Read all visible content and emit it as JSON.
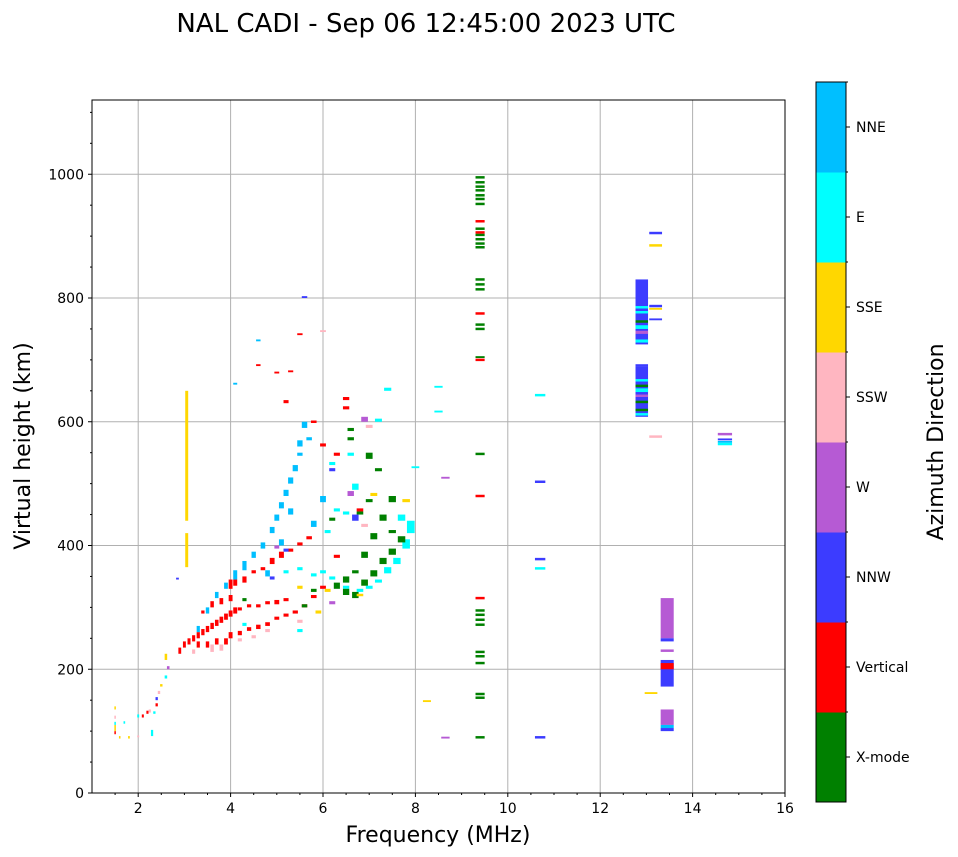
{
  "chart_data": {
    "type": "heatmap",
    "title": "NAL CADI - Sep 06 12:45:00 2023 UTC",
    "xlabel": "Frequency (MHz)",
    "ylabel": "Virtual height (km)",
    "xlim": [
      1,
      16
    ],
    "ylim": [
      0,
      1120
    ],
    "xticks": [
      2,
      4,
      6,
      8,
      10,
      12,
      14,
      16
    ],
    "yticks": [
      0,
      200,
      400,
      600,
      800,
      1000
    ],
    "grid": true,
    "colorbar": {
      "label": "Azimuth Direction",
      "placement": "right",
      "categories": [
        {
          "name": "X-mode",
          "color": "#008000"
        },
        {
          "name": "Vertical",
          "color": "#ff0000"
        },
        {
          "name": "NNW",
          "color": "#3c3cff"
        },
        {
          "name": "W",
          "color": "#b65ad4"
        },
        {
          "name": "SSW",
          "color": "#ffb6c1"
        },
        {
          "name": "SSE",
          "color": "#ffd700"
        },
        {
          "name": "E",
          "color": "#00ffff"
        },
        {
          "name": "NNE",
          "color": "#00bfff"
        }
      ]
    },
    "cell_format": [
      "freq_MHz",
      "height_low_km",
      "height_high_km",
      "category_index"
    ],
    "cells": [
      [
        1.5,
        95,
        100,
        1
      ],
      [
        1.5,
        100,
        110,
        5
      ],
      [
        1.5,
        110,
        115,
        6
      ],
      [
        1.5,
        120,
        125,
        4
      ],
      [
        1.5,
        135,
        140,
        5
      ],
      [
        1.6,
        88,
        92,
        5
      ],
      [
        1.8,
        88,
        92,
        5
      ],
      [
        2.0,
        122,
        127,
        6
      ],
      [
        2.2,
        128,
        133,
        1
      ],
      [
        2.25,
        130,
        135,
        4
      ],
      [
        2.4,
        140,
        145,
        1
      ],
      [
        2.4,
        150,
        155,
        2
      ],
      [
        2.45,
        160,
        165,
        4
      ],
      [
        2.5,
        172,
        176,
        5
      ],
      [
        2.3,
        92,
        102,
        6
      ],
      [
        2.6,
        185,
        190,
        6
      ],
      [
        2.65,
        200,
        205,
        3
      ],
      [
        2.6,
        215,
        225,
        5
      ],
      [
        2.0,
        90,
        93,
        4
      ],
      [
        1.7,
        112,
        116,
        6
      ],
      [
        2.1,
        122,
        127,
        1
      ],
      [
        2.35,
        128,
        132,
        6
      ],
      [
        2.85,
        345,
        348,
        2
      ],
      [
        2.9,
        225,
        235,
        1
      ],
      [
        3.0,
        235,
        245,
        1
      ],
      [
        3.1,
        240,
        250,
        1
      ],
      [
        3.2,
        245,
        255,
        1
      ],
      [
        3.3,
        250,
        260,
        1
      ],
      [
        3.4,
        255,
        265,
        1
      ],
      [
        3.5,
        260,
        270,
        1
      ],
      [
        3.6,
        265,
        275,
        1
      ],
      [
        3.7,
        270,
        280,
        1
      ],
      [
        3.8,
        275,
        285,
        1
      ],
      [
        3.9,
        280,
        290,
        1
      ],
      [
        4.0,
        285,
        295,
        1
      ],
      [
        4.1,
        290,
        300,
        1
      ],
      [
        4.2,
        295,
        300,
        1
      ],
      [
        4.4,
        300,
        305,
        1
      ],
      [
        4.6,
        300,
        305,
        1
      ],
      [
        4.8,
        305,
        310,
        1
      ],
      [
        5.0,
        305,
        312,
        1
      ],
      [
        5.2,
        310,
        315,
        1
      ],
      [
        3.3,
        235,
        245,
        1
      ],
      [
        3.5,
        235,
        245,
        1
      ],
      [
        3.7,
        240,
        250,
        1
      ],
      [
        3.9,
        240,
        250,
        1
      ],
      [
        4.0,
        250,
        260,
        1
      ],
      [
        4.2,
        255,
        262,
        1
      ],
      [
        4.4,
        262,
        268,
        1
      ],
      [
        4.6,
        265,
        272,
        1
      ],
      [
        4.8,
        270,
        276,
        1
      ],
      [
        5.0,
        280,
        285,
        1
      ],
      [
        5.2,
        285,
        290,
        1
      ],
      [
        5.4,
        290,
        295,
        1
      ],
      [
        5.6,
        300,
        305,
        1
      ],
      [
        5.8,
        315,
        320,
        1
      ],
      [
        6.0,
        330,
        335,
        1
      ],
      [
        4.0,
        330,
        345,
        1
      ],
      [
        4.1,
        335,
        345,
        1
      ],
      [
        4.3,
        340,
        350,
        1
      ],
      [
        4.5,
        355,
        360,
        1
      ],
      [
        4.7,
        360,
        365,
        1
      ],
      [
        4.9,
        370,
        380,
        1
      ],
      [
        5.1,
        380,
        390,
        1
      ],
      [
        5.3,
        390,
        395,
        1
      ],
      [
        5.5,
        400,
        405,
        1
      ],
      [
        5.7,
        410,
        415,
        1
      ],
      [
        3.6,
        300,
        310,
        1
      ],
      [
        3.8,
        305,
        315,
        1
      ],
      [
        4.0,
        310,
        320,
        1
      ],
      [
        3.4,
        290,
        295,
        1
      ],
      [
        3.6,
        228,
        240,
        4
      ],
      [
        3.8,
        230,
        240,
        4
      ],
      [
        4.2,
        245,
        250,
        4
      ],
      [
        4.5,
        250,
        255,
        4
      ],
      [
        4.8,
        260,
        265,
        4
      ],
      [
        5.5,
        275,
        280,
        4
      ],
      [
        3.2,
        225,
        232,
        4
      ],
      [
        6.0,
        745,
        748,
        4
      ],
      [
        6.9,
        430,
        435,
        4
      ],
      [
        7.0,
        590,
        595,
        4
      ],
      [
        3.3,
        260,
        270,
        7
      ],
      [
        3.5,
        290,
        300,
        7
      ],
      [
        3.7,
        315,
        325,
        7
      ],
      [
        3.9,
        330,
        340,
        7
      ],
      [
        4.1,
        345,
        360,
        7
      ],
      [
        4.3,
        360,
        375,
        7
      ],
      [
        4.5,
        380,
        390,
        7
      ],
      [
        4.7,
        395,
        405,
        7
      ],
      [
        4.9,
        420,
        430,
        7
      ],
      [
        5.0,
        440,
        450,
        7
      ],
      [
        5.1,
        460,
        470,
        7
      ],
      [
        5.2,
        480,
        490,
        7
      ],
      [
        5.3,
        500,
        510,
        7
      ],
      [
        5.4,
        520,
        530,
        7
      ],
      [
        5.5,
        560,
        570,
        7
      ],
      [
        5.6,
        590,
        600,
        7
      ],
      [
        5.3,
        450,
        460,
        7
      ],
      [
        5.1,
        400,
        410,
        7
      ],
      [
        4.8,
        350,
        360,
        7
      ],
      [
        5.8,
        430,
        440,
        7
      ],
      [
        5.5,
        545,
        550,
        7
      ],
      [
        4.6,
        730,
        733,
        7
      ],
      [
        4.1,
        660,
        663,
        7
      ],
      [
        5.7,
        570,
        575,
        7
      ],
      [
        6.0,
        470,
        480,
        7
      ],
      [
        5.2,
        355,
        360,
        6
      ],
      [
        5.5,
        360,
        365,
        6
      ],
      [
        5.8,
        350,
        355,
        6
      ],
      [
        6.0,
        355,
        360,
        6
      ],
      [
        6.2,
        345,
        350,
        6
      ],
      [
        6.5,
        330,
        335,
        6
      ],
      [
        6.8,
        325,
        330,
        6
      ],
      [
        7.0,
        330,
        335,
        6
      ],
      [
        7.2,
        340,
        345,
        6
      ],
      [
        7.4,
        355,
        365,
        6
      ],
      [
        7.6,
        370,
        380,
        6
      ],
      [
        7.8,
        395,
        410,
        6
      ],
      [
        7.9,
        420,
        440,
        6
      ],
      [
        7.7,
        440,
        450,
        6
      ],
      [
        6.6,
        545,
        550,
        6
      ],
      [
        6.3,
        455,
        460,
        6
      ],
      [
        6.2,
        530,
        535,
        6
      ],
      [
        6.5,
        450,
        455,
        6
      ],
      [
        7.2,
        600,
        605,
        6
      ],
      [
        7.4,
        650,
        655,
        6
      ],
      [
        6.7,
        490,
        500,
        6
      ],
      [
        5.5,
        260,
        265,
        6
      ],
      [
        4.3,
        270,
        275,
        6
      ],
      [
        6.1,
        420,
        425,
        6
      ],
      [
        8.5,
        655,
        658,
        6
      ],
      [
        8.5,
        615,
        618,
        6
      ],
      [
        8.0,
        525,
        528,
        6
      ],
      [
        6.3,
        330,
        340,
        0
      ],
      [
        6.5,
        320,
        330,
        0
      ],
      [
        6.7,
        315,
        325,
        0
      ],
      [
        6.9,
        335,
        345,
        0
      ],
      [
        7.1,
        350,
        360,
        0
      ],
      [
        7.3,
        370,
        380,
        0
      ],
      [
        7.5,
        385,
        395,
        0
      ],
      [
        7.7,
        405,
        415,
        0
      ],
      [
        6.5,
        340,
        350,
        0
      ],
      [
        6.7,
        355,
        360,
        0
      ],
      [
        6.9,
        380,
        390,
        0
      ],
      [
        7.1,
        410,
        420,
        0
      ],
      [
        7.3,
        440,
        450,
        0
      ],
      [
        7.5,
        470,
        480,
        0
      ],
      [
        7.0,
        470,
        475,
        0
      ],
      [
        6.8,
        450,
        455,
        0
      ],
      [
        6.6,
        570,
        575,
        0
      ],
      [
        6.6,
        585,
        590,
        0
      ],
      [
        7.0,
        540,
        550,
        0
      ],
      [
        7.2,
        520,
        525,
        0
      ],
      [
        7.5,
        420,
        425,
        0
      ],
      [
        6.2,
        440,
        445,
        0
      ],
      [
        5.8,
        325,
        330,
        0
      ],
      [
        5.6,
        300,
        305,
        0
      ],
      [
        4.3,
        310,
        315,
        0
      ],
      [
        3.05,
        365,
        420,
        5
      ],
      [
        3.05,
        440,
        650,
        5
      ],
      [
        5.5,
        330,
        335,
        5
      ],
      [
        6.1,
        325,
        330,
        5
      ],
      [
        6.8,
        318,
        322,
        5
      ],
      [
        7.8,
        470,
        475,
        5
      ],
      [
        7.1,
        480,
        485,
        5
      ],
      [
        5.9,
        290,
        295,
        5
      ],
      [
        8.25,
        147,
        150,
        5
      ],
      [
        6.6,
        480,
        488,
        3
      ],
      [
        6.9,
        600,
        608,
        3
      ],
      [
        5.0,
        395,
        400,
        3
      ],
      [
        6.2,
        305,
        310,
        3
      ],
      [
        8.65,
        508,
        511,
        3
      ],
      [
        8.65,
        88,
        91,
        3
      ],
      [
        5.6,
        800,
        803,
        2
      ],
      [
        5.2,
        390,
        395,
        2
      ],
      [
        6.7,
        440,
        450,
        2
      ],
      [
        4.9,
        345,
        350,
        2
      ],
      [
        6.2,
        520,
        525,
        2
      ],
      [
        5.5,
        740,
        743,
        1
      ],
      [
        5.0,
        678,
        681,
        1
      ],
      [
        4.6,
        690,
        693,
        1
      ],
      [
        5.3,
        680,
        683,
        1
      ],
      [
        6.5,
        635,
        640,
        1
      ],
      [
        6.5,
        620,
        625,
        1
      ],
      [
        6.3,
        545,
        550,
        1
      ],
      [
        5.8,
        598,
        602,
        1
      ],
      [
        6.0,
        560,
        565,
        1
      ],
      [
        6.8,
        455,
        460,
        1
      ],
      [
        6.3,
        380,
        385,
        1
      ],
      [
        5.2,
        630,
        635,
        1
      ],
      [
        9.4,
        993,
        997,
        0
      ],
      [
        9.4,
        985,
        989,
        0
      ],
      [
        9.4,
        978,
        982,
        0
      ],
      [
        9.4,
        972,
        976,
        0
      ],
      [
        9.4,
        964,
        968,
        0
      ],
      [
        9.4,
        958,
        962,
        0
      ],
      [
        9.4,
        950,
        954,
        0
      ],
      [
        9.4,
        910,
        914,
        0
      ],
      [
        9.4,
        900,
        904,
        0
      ],
      [
        9.4,
        893,
        897,
        0
      ],
      [
        9.4,
        886,
        890,
        0
      ],
      [
        9.4,
        880,
        884,
        0
      ],
      [
        9.4,
        828,
        832,
        0
      ],
      [
        9.4,
        820,
        824,
        0
      ],
      [
        9.4,
        812,
        816,
        0
      ],
      [
        9.4,
        755,
        759,
        0
      ],
      [
        9.4,
        748,
        752,
        0
      ],
      [
        9.4,
        703,
        706,
        0
      ],
      [
        9.4,
        546,
        550,
        0
      ],
      [
        9.4,
        293,
        297,
        0
      ],
      [
        9.4,
        286,
        290,
        0
      ],
      [
        9.4,
        278,
        282,
        0
      ],
      [
        9.4,
        270,
        274,
        0
      ],
      [
        9.4,
        226,
        230,
        0
      ],
      [
        9.4,
        219,
        223,
        0
      ],
      [
        9.4,
        208,
        212,
        0
      ],
      [
        9.4,
        158,
        162,
        0
      ],
      [
        9.4,
        152,
        156,
        0
      ],
      [
        9.4,
        88,
        92,
        0
      ],
      [
        9.4,
        922,
        926,
        1
      ],
      [
        9.4,
        904,
        908,
        1
      ],
      [
        9.4,
        773,
        777,
        1
      ],
      [
        9.4,
        698,
        702,
        1
      ],
      [
        9.4,
        478,
        482,
        1
      ],
      [
        9.4,
        313,
        317,
        1
      ],
      [
        10.7,
        641,
        645,
        6
      ],
      [
        10.7,
        501,
        505,
        2
      ],
      [
        10.7,
        376,
        380,
        2
      ],
      [
        10.7,
        361,
        365,
        6
      ],
      [
        10.7,
        88,
        92,
        2
      ],
      [
        12.9,
        608,
        690,
        2
      ],
      [
        12.9,
        610,
        614,
        6
      ],
      [
        12.9,
        617,
        621,
        0
      ],
      [
        12.9,
        630,
        634,
        0
      ],
      [
        12.9,
        640,
        644,
        3
      ],
      [
        12.9,
        648,
        654,
        6
      ],
      [
        12.9,
        656,
        660,
        0
      ],
      [
        12.9,
        665,
        669,
        6
      ],
      [
        12.9,
        725,
        830,
        2
      ],
      [
        12.9,
        728,
        733,
        6
      ],
      [
        12.9,
        742,
        747,
        3
      ],
      [
        12.9,
        750,
        756,
        6
      ],
      [
        12.9,
        760,
        764,
        0
      ],
      [
        12.9,
        775,
        779,
        6
      ],
      [
        12.9,
        783,
        787,
        6
      ],
      [
        12.9,
        690,
        693,
        2
      ],
      [
        13.2,
        903,
        907,
        2
      ],
      [
        13.2,
        883,
        887,
        5
      ],
      [
        13.2,
        785,
        789,
        2
      ],
      [
        13.2,
        781,
        784,
        5
      ],
      [
        13.2,
        764,
        767,
        2
      ],
      [
        13.2,
        574,
        578,
        4
      ],
      [
        13.1,
        160,
        163,
        5
      ],
      [
        13.45,
        250,
        315,
        3
      ],
      [
        13.45,
        245,
        250,
        2
      ],
      [
        13.45,
        228,
        232,
        3
      ],
      [
        13.45,
        172,
        215,
        2
      ],
      [
        13.45,
        200,
        210,
        1
      ],
      [
        13.45,
        110,
        135,
        3
      ],
      [
        13.45,
        105,
        110,
        7
      ],
      [
        13.45,
        100,
        105,
        2
      ],
      [
        14.7,
        578,
        582,
        3
      ],
      [
        14.7,
        570,
        573,
        2
      ],
      [
        14.7,
        566,
        569,
        7
      ],
      [
        14.7,
        562,
        566,
        6
      ]
    ]
  }
}
